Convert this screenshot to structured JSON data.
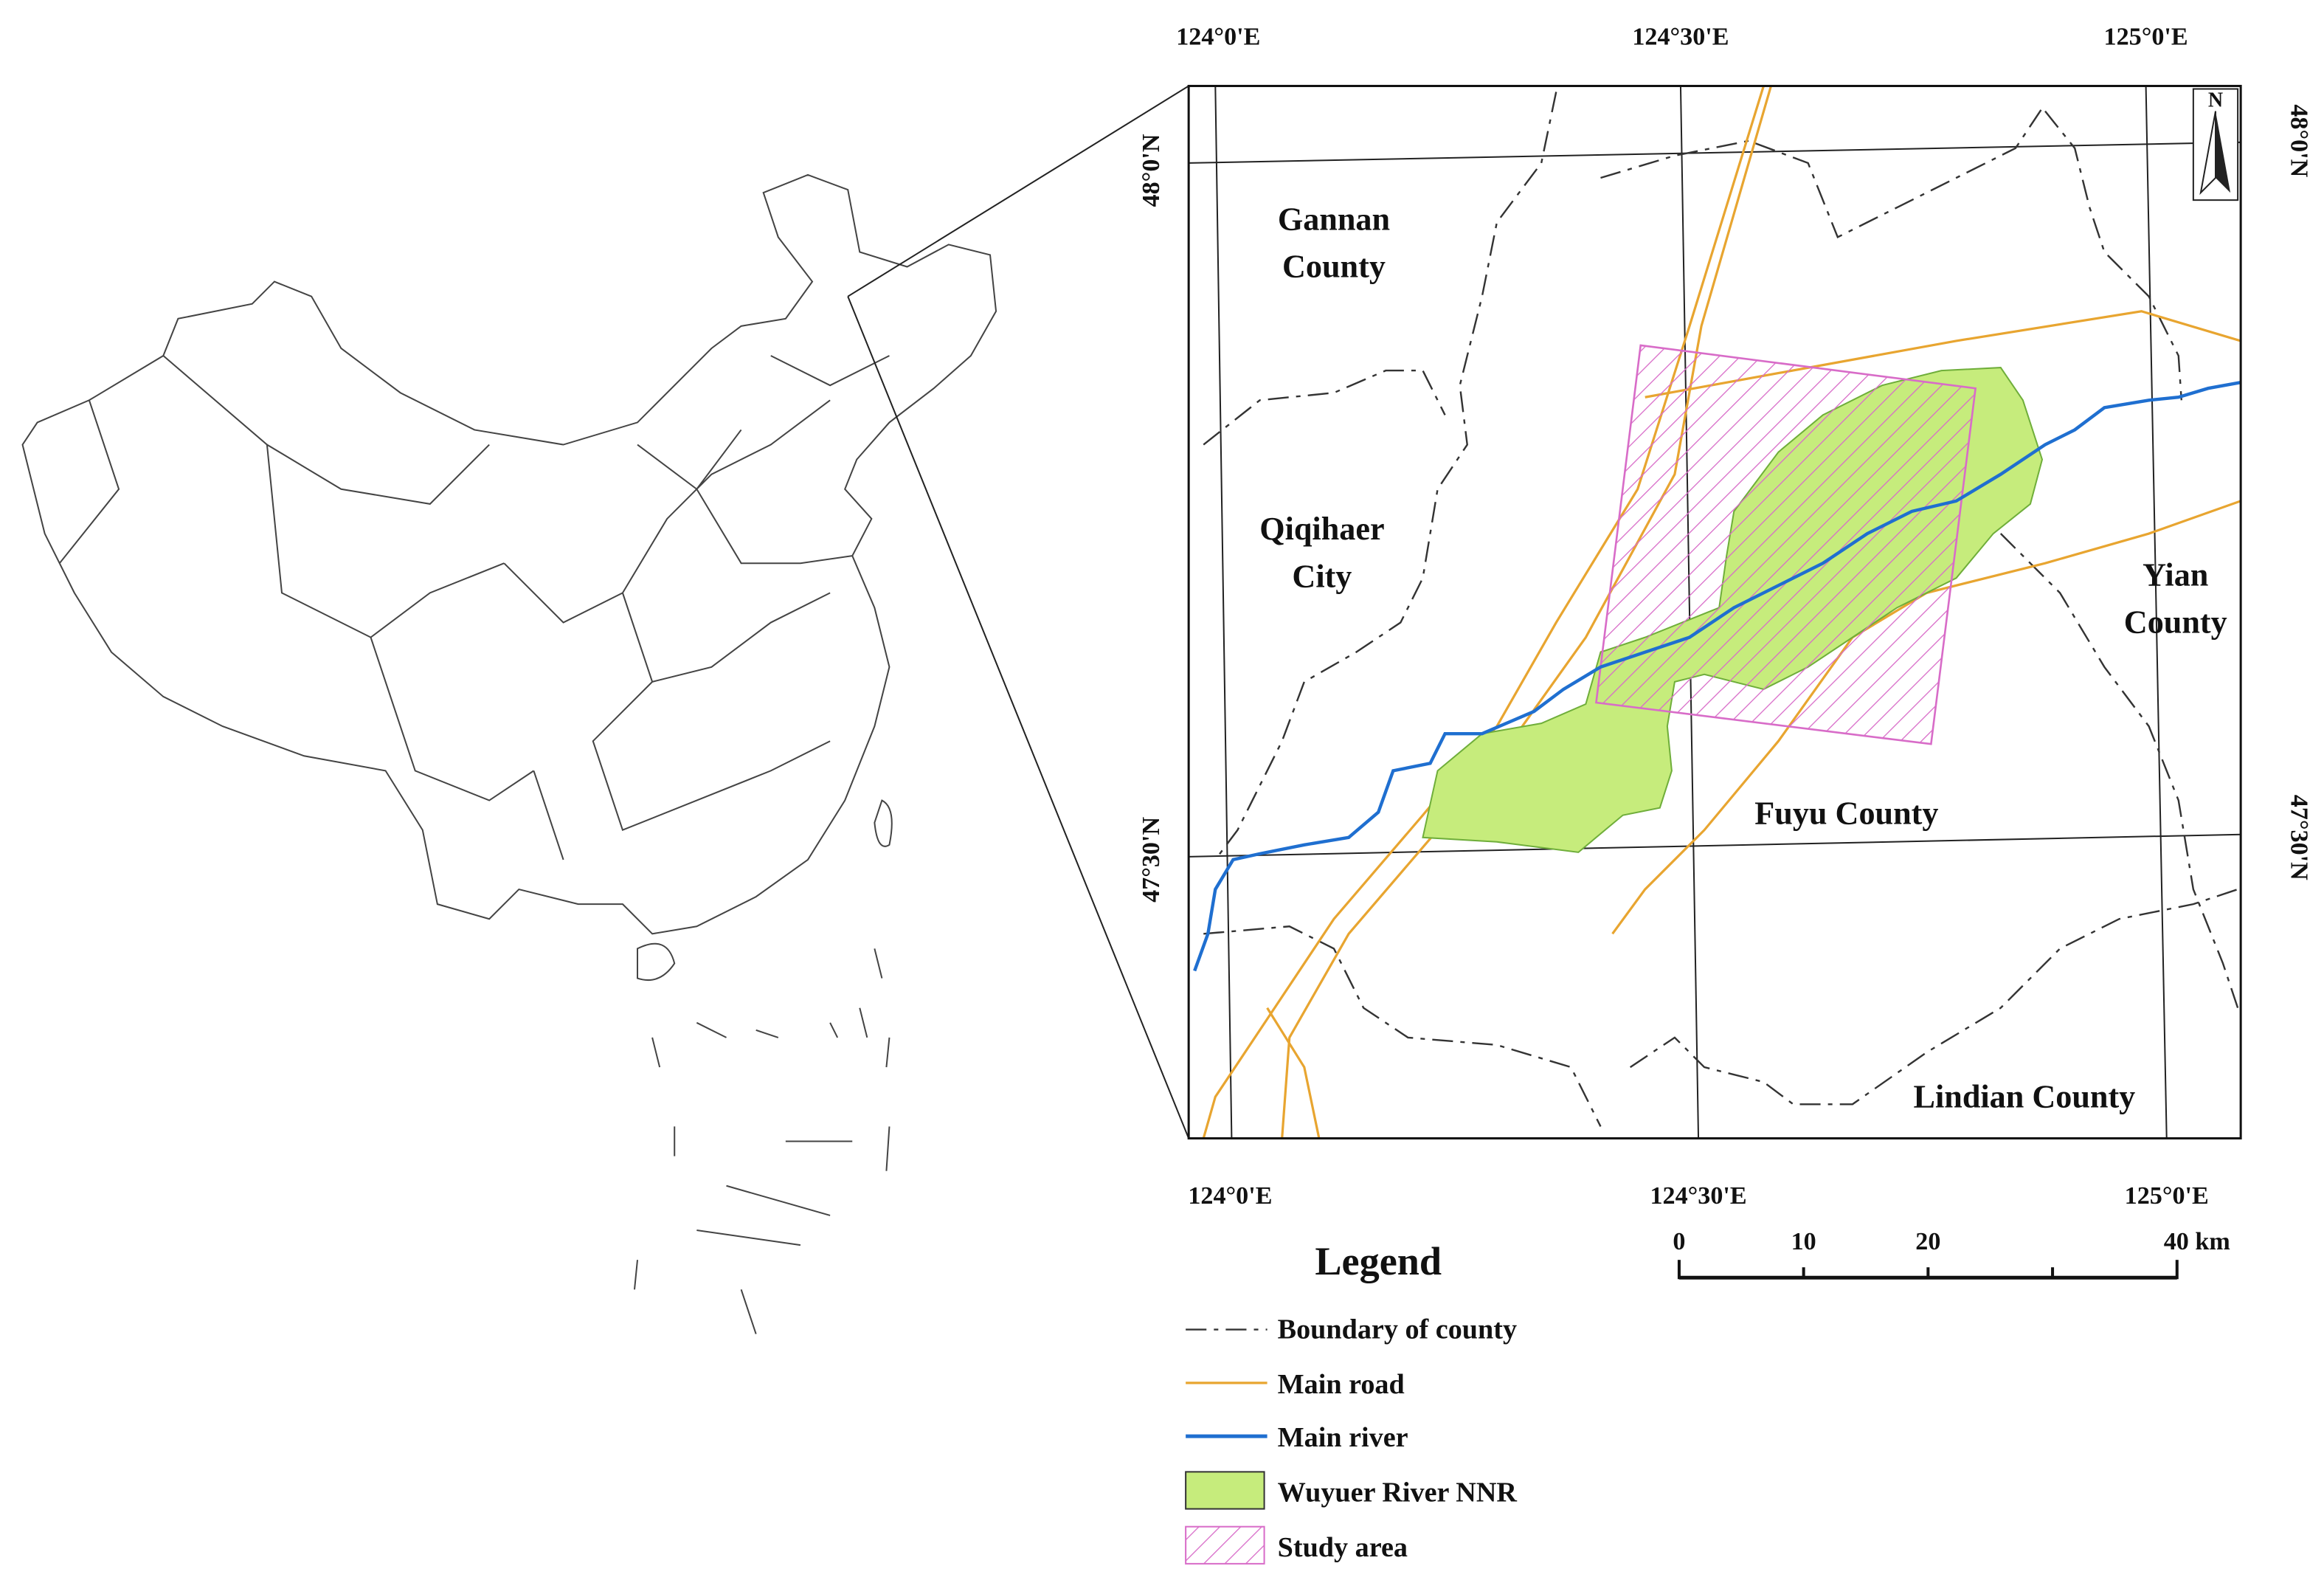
{
  "map": {
    "north_arrow": "N",
    "top_labels": [
      "124°0'E",
      "124°30'E",
      "125°0'E"
    ],
    "bottom_labels": [
      "124°0'E",
      "124°30'E",
      "125°0'E"
    ],
    "left_labels": [
      "48°0'N",
      "47°30'N"
    ],
    "right_labels": [
      "48°0'N",
      "47°30'N"
    ],
    "places": [
      {
        "lines": [
          "Gannan",
          "County"
        ]
      },
      {
        "lines": [
          "Qiqihaer",
          "City"
        ]
      },
      {
        "lines": [
          "Yian",
          "County"
        ]
      },
      {
        "lines": [
          "Fuyu County"
        ]
      },
      {
        "lines": [
          "Lindian County"
        ]
      }
    ]
  },
  "legend": {
    "title": "Legend",
    "items": [
      "Boundary of county",
      "Main road",
      "Main river",
      "Wuyuer River NNR",
      "Study area"
    ]
  },
  "scale_bar": {
    "labels": [
      "0",
      "10",
      "20",
      "40 km"
    ]
  }
}
